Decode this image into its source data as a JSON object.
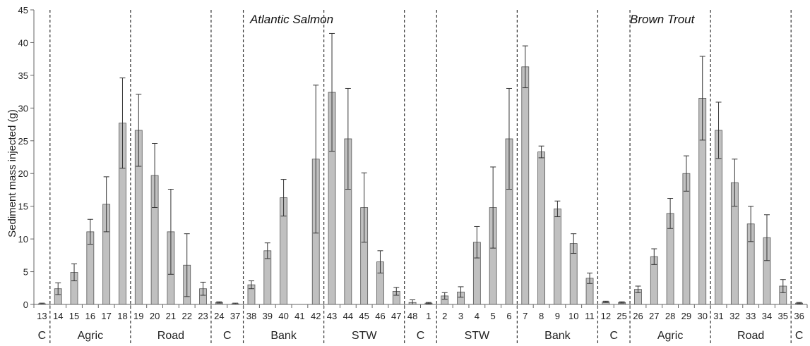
{
  "chart_data": {
    "type": "bar",
    "ylabel": "Sediment mass injected (g)",
    "ylim": [
      0,
      45
    ],
    "yticks": [
      0,
      5,
      10,
      15,
      20,
      25,
      30,
      35,
      40,
      45
    ],
    "grid": false,
    "bar_color": "#c0c0c0",
    "categories": [
      "13",
      "14",
      "15",
      "16",
      "17",
      "18",
      "19",
      "20",
      "21",
      "22",
      "23",
      "24",
      "37",
      "38",
      "39",
      "40",
      "41",
      "42",
      "43",
      "44",
      "45",
      "46",
      "47",
      "48",
      "1",
      "2",
      "3",
      "4",
      "5",
      "6",
      "7",
      "8",
      "9",
      "10",
      "11",
      "12",
      "25",
      "26",
      "27",
      "28",
      "29",
      "30",
      "31",
      "32",
      "33",
      "34",
      "35",
      "36"
    ],
    "values": [
      0.1,
      2.4,
      4.9,
      11.1,
      15.3,
      27.7,
      26.6,
      19.7,
      11.1,
      6.0,
      2.4,
      0.3,
      0.1,
      3.0,
      8.2,
      16.3,
      0,
      22.2,
      32.4,
      25.3,
      14.8,
      6.5,
      2.0,
      0.3,
      0.2,
      1.3,
      1.9,
      9.5,
      14.8,
      25.3,
      36.3,
      23.3,
      14.6,
      9.3,
      4.0,
      0.4,
      0.3,
      2.3,
      7.3,
      13.9,
      20.0,
      31.5,
      26.6,
      18.6,
      12.3,
      10.2,
      2.8,
      0.2
    ],
    "errors": [
      0.1,
      0.9,
      1.3,
      1.9,
      4.2,
      6.9,
      5.5,
      4.9,
      6.5,
      4.8,
      1.0,
      0.1,
      0.1,
      0.6,
      1.2,
      2.8,
      0,
      11.3,
      9.0,
      7.7,
      5.3,
      1.7,
      0.6,
      0.4,
      0.1,
      0.5,
      0.8,
      2.4,
      6.2,
      7.7,
      3.2,
      0.9,
      1.2,
      1.5,
      0.8,
      0.1,
      0.1,
      0.5,
      1.2,
      2.3,
      2.7,
      6.4,
      4.3,
      3.6,
      2.7,
      3.5,
      1.0,
      0.1
    ],
    "groups": [
      {
        "label": "C",
        "count": 1
      },
      {
        "label": "Agric",
        "count": 5
      },
      {
        "label": "Road",
        "count": 5
      },
      {
        "label": "C",
        "count": 2
      },
      {
        "label": "Bank",
        "count": 5
      },
      {
        "label": "STW",
        "count": 5
      },
      {
        "label": "C",
        "count": 2
      },
      {
        "label": "STW",
        "count": 5
      },
      {
        "label": "Bank",
        "count": 5
      },
      {
        "label": "C",
        "count": 2
      },
      {
        "label": "Agric",
        "count": 5
      },
      {
        "label": "Road",
        "count": 5
      },
      {
        "label": "C",
        "count": 1
      }
    ],
    "species_labels": [
      {
        "text": "Atlantic Salmon",
        "from": 0,
        "to": 23
      },
      {
        "text": "Brown Trout",
        "from": 24,
        "to": 47
      }
    ]
  }
}
